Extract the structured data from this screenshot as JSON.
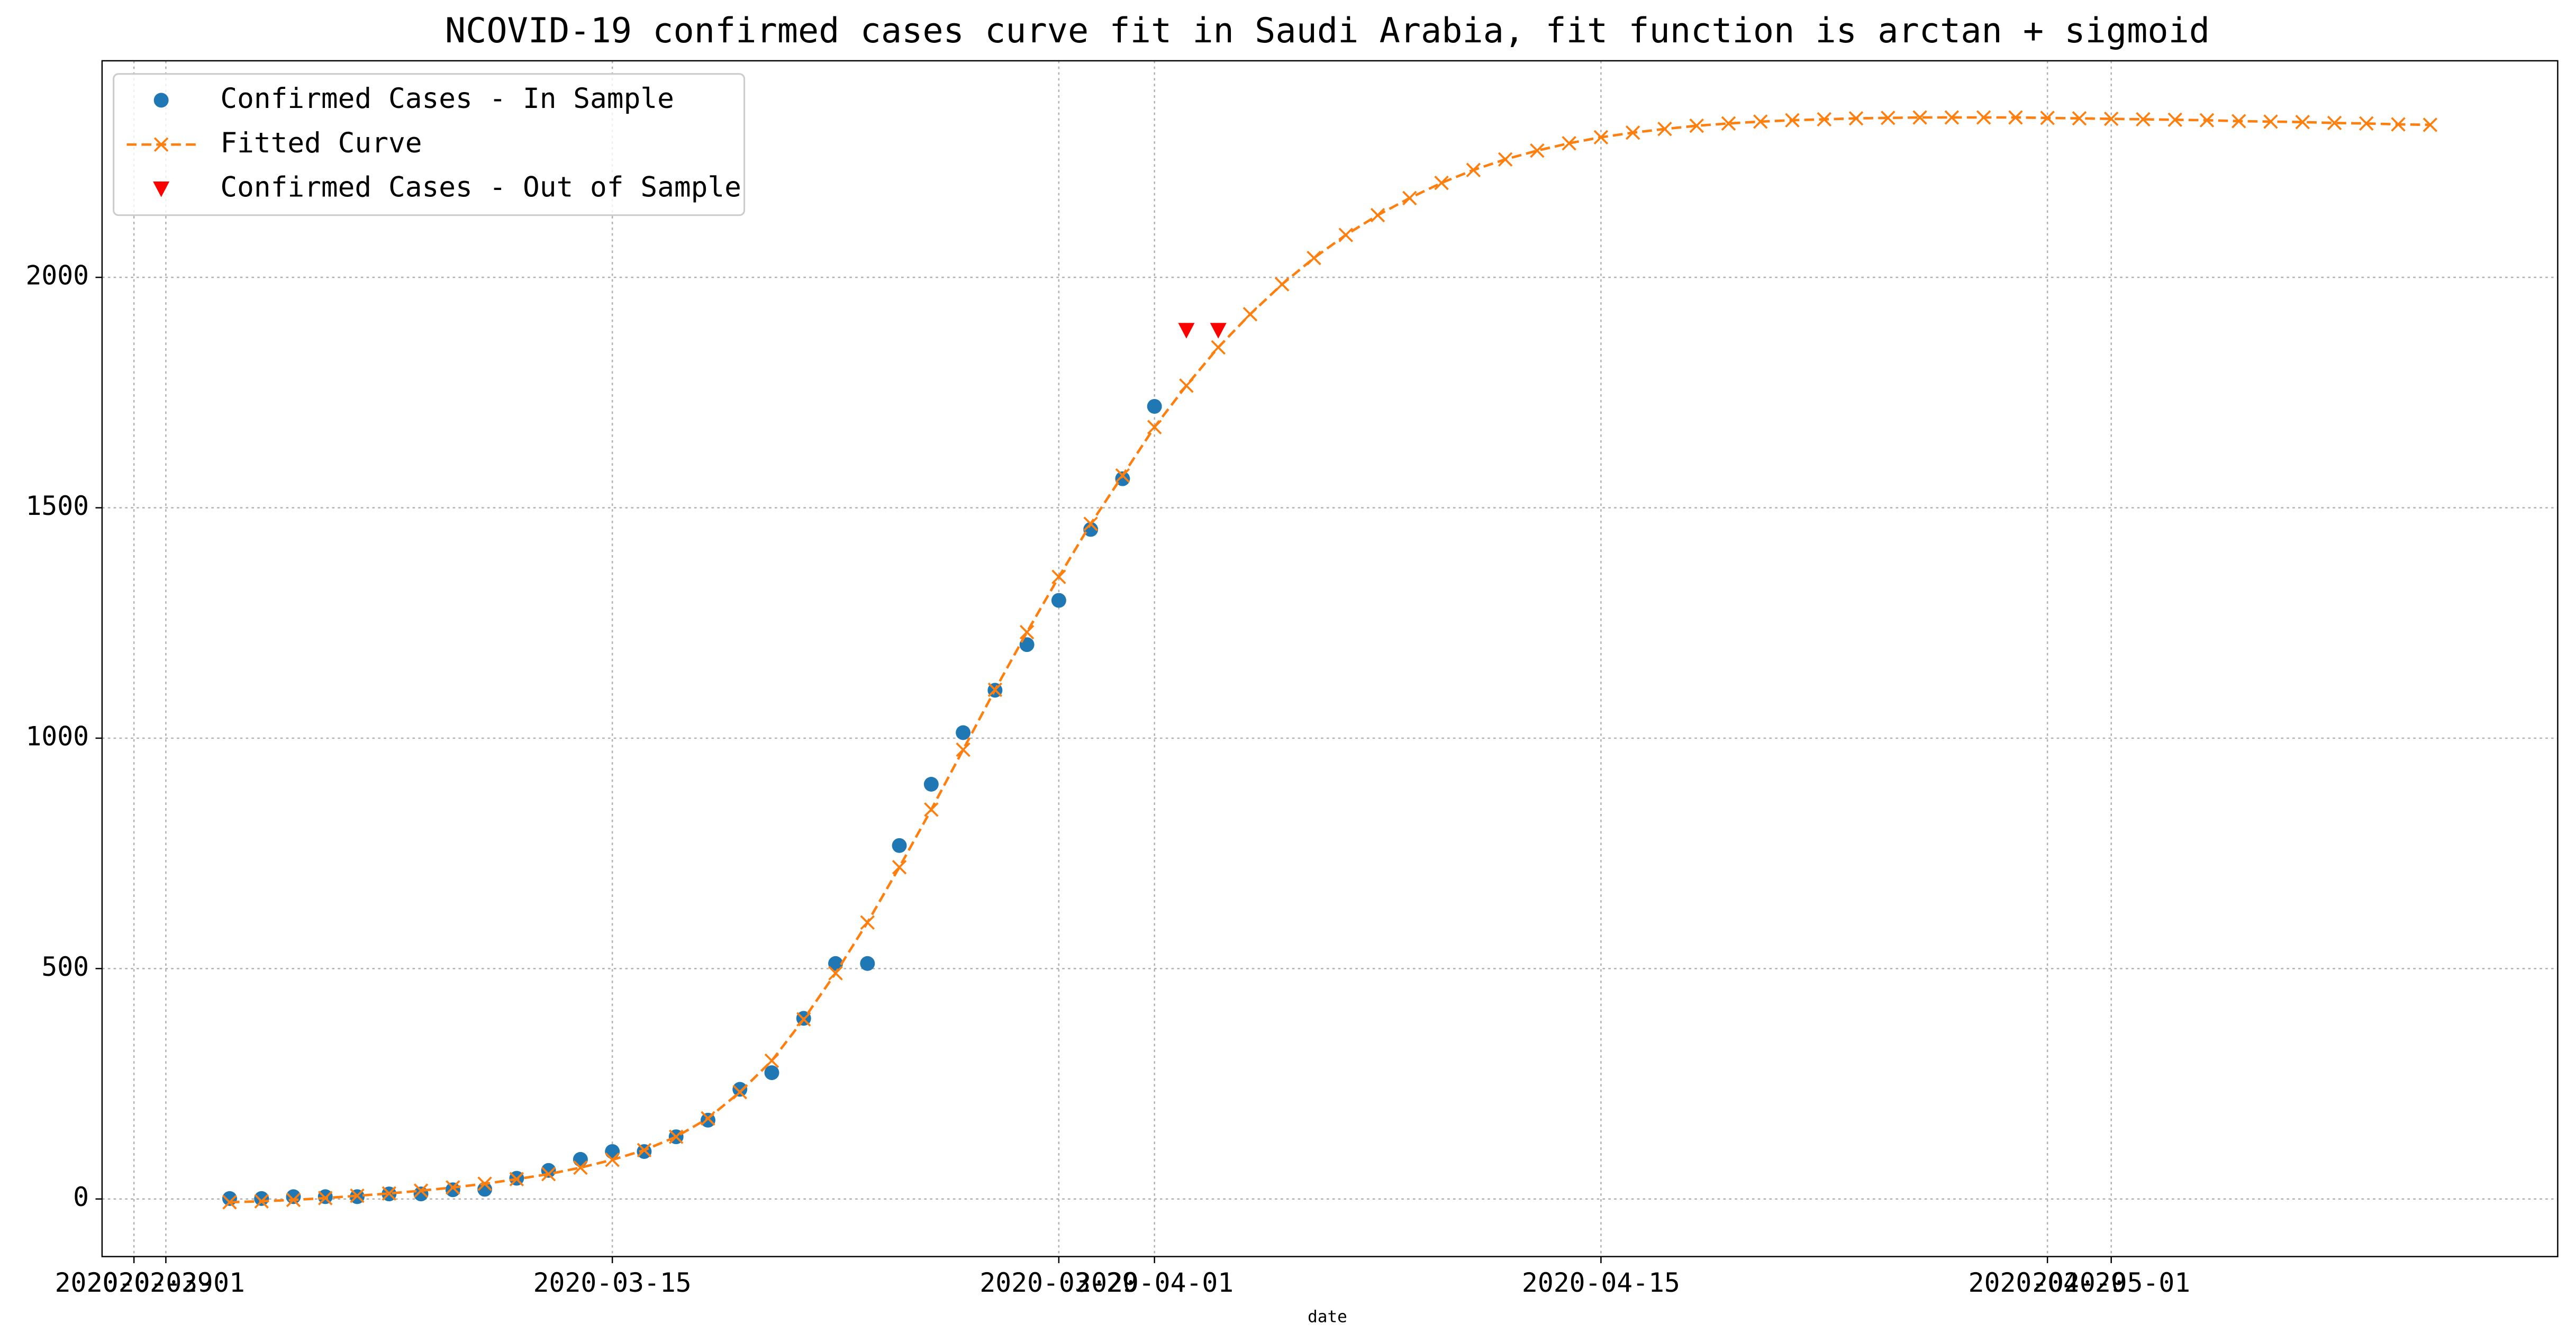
{
  "chart_data": {
    "type": "line",
    "title": "NCOVID-19 confirmed cases curve fit in Saudi Arabia, fit function is arctan + sigmoid",
    "x_label": "date",
    "xlim": [
      "2020-02-28",
      "2020-05-15"
    ],
    "xticks": [
      "2020-02-29",
      "2020-03-01",
      "2020-03-15",
      "2020-03-29",
      "2020-04-01",
      "2020-04-15",
      "2020-04-29",
      "2020-05-01"
    ],
    "ylim": [
      -125,
      2470
    ],
    "yticks": [
      0,
      500,
      1000,
      1500,
      2000
    ],
    "grid": true,
    "legend": "upper left",
    "series": [
      {
        "name": "Confirmed Cases - In Sample",
        "color": "#1f77b4",
        "marker": "circle",
        "line": false,
        "x": [
          "2020-03-03",
          "2020-03-04",
          "2020-03-05",
          "2020-03-06",
          "2020-03-07",
          "2020-03-08",
          "2020-03-09",
          "2020-03-10",
          "2020-03-11",
          "2020-03-12",
          "2020-03-13",
          "2020-03-14",
          "2020-03-15",
          "2020-03-16",
          "2020-03-17",
          "2020-03-18",
          "2020-03-19",
          "2020-03-20",
          "2020-03-21",
          "2020-03-22",
          "2020-03-23",
          "2020-03-24",
          "2020-03-25",
          "2020-03-26",
          "2020-03-27",
          "2020-03-28",
          "2020-03-29",
          "2020-03-30",
          "2020-03-31",
          "2020-04-01"
        ],
        "values": [
          1,
          1,
          5,
          5,
          5,
          11,
          11,
          20,
          21,
          45,
          62,
          86,
          103,
          103,
          135,
          171,
          238,
          274,
          392,
          511,
          511,
          767,
          900,
          1012,
          1104,
          1203,
          1299,
          1453,
          1563,
          1720
        ]
      },
      {
        "name": "Fitted Curve",
        "color": "#ff7f0e",
        "marker": "x",
        "line": true,
        "x": [
          "2020-03-03",
          "2020-03-04",
          "2020-03-05",
          "2020-03-06",
          "2020-03-07",
          "2020-03-08",
          "2020-03-09",
          "2020-03-10",
          "2020-03-11",
          "2020-03-12",
          "2020-03-13",
          "2020-03-14",
          "2020-03-15",
          "2020-03-16",
          "2020-03-17",
          "2020-03-18",
          "2020-03-19",
          "2020-03-20",
          "2020-03-21",
          "2020-03-22",
          "2020-03-23",
          "2020-03-24",
          "2020-03-25",
          "2020-03-26",
          "2020-03-27",
          "2020-03-28",
          "2020-03-29",
          "2020-03-30",
          "2020-03-31",
          "2020-04-01",
          "2020-04-02",
          "2020-04-03",
          "2020-04-04",
          "2020-04-05",
          "2020-04-06",
          "2020-04-07",
          "2020-04-08",
          "2020-04-09",
          "2020-04-10",
          "2020-04-11",
          "2020-04-12",
          "2020-04-13",
          "2020-04-14",
          "2020-04-15",
          "2020-04-16",
          "2020-04-17",
          "2020-04-18",
          "2020-04-19",
          "2020-04-20",
          "2020-04-21",
          "2020-04-22",
          "2020-04-23",
          "2020-04-24",
          "2020-04-25",
          "2020-04-26",
          "2020-04-27",
          "2020-04-28",
          "2020-04-29",
          "2020-04-30",
          "2020-05-01",
          "2020-05-02",
          "2020-05-03",
          "2020-05-04",
          "2020-05-05",
          "2020-05-06",
          "2020-05-07",
          "2020-05-08",
          "2020-05-09",
          "2020-05-10",
          "2020-05-11"
        ],
        "values": [
          -7,
          -5,
          -2,
          2,
          7,
          12,
          18,
          25,
          33,
          43,
          54,
          68,
          85,
          106,
          135,
          175,
          232,
          300,
          390,
          490,
          600,
          720,
          845,
          975,
          1105,
          1230,
          1350,
          1465,
          1570,
          1675,
          1765,
          1848,
          1920,
          1985,
          2042,
          2092,
          2135,
          2172,
          2205,
          2233,
          2256,
          2275,
          2291,
          2304,
          2314,
          2322,
          2329,
          2334,
          2338,
          2341,
          2343,
          2345,
          2346,
          2347,
          2347,
          2347,
          2347,
          2346,
          2345,
          2344,
          2343,
          2342,
          2341,
          2339,
          2338,
          2337,
          2335,
          2334,
          2332,
          2331
        ]
      },
      {
        "name": "Confirmed Cases - Out of Sample",
        "color": "#ff0000",
        "marker": "triangle-down",
        "line": false,
        "x": [
          "2020-04-02",
          "2020-04-03"
        ],
        "values": [
          1885,
          1885
        ]
      }
    ]
  }
}
